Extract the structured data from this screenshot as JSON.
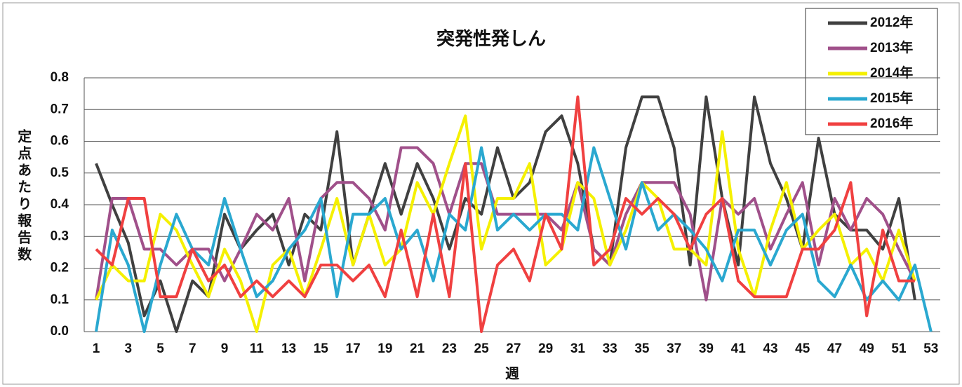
{
  "chart_data": {
    "type": "line",
    "title": "突発性発しん",
    "xlabel": "週",
    "ylabel": "定点あたり報告数",
    "categories": [
      1,
      null,
      3,
      null,
      5,
      null,
      7,
      null,
      9,
      null,
      11,
      null,
      13,
      null,
      15,
      null,
      17,
      null,
      19,
      null,
      21,
      null,
      23,
      null,
      25,
      null,
      27,
      null,
      29,
      null,
      31,
      null,
      33,
      null,
      35,
      null,
      37,
      null,
      39,
      null,
      41,
      null,
      43,
      null,
      45,
      null,
      47,
      null,
      49,
      null,
      51,
      null,
      53
    ],
    "ylim": [
      0,
      0.8
    ],
    "yticks": [
      {
        "value": 0,
        "label": "0.0"
      },
      0.1,
      0.2,
      0.3,
      0.4,
      0.5,
      0.6,
      0.7,
      0.8
    ],
    "grid": true,
    "legend": "top-right",
    "series": [
      {
        "name": "2012年",
        "color": "#404040",
        "values": [
          0.53,
          0.4,
          0.28,
          0.05,
          0.16,
          0,
          0.16,
          0.11,
          0.37,
          0.26,
          0.32,
          0.37,
          0.21,
          0.37,
          0.32,
          0.63,
          0.21,
          0.37,
          0.53,
          0.37,
          0.53,
          0.42,
          0.26,
          0.42,
          0.37,
          0.58,
          0.42,
          0.47,
          0.63,
          0.68,
          0.53,
          0.26,
          0.21,
          0.58,
          0.74,
          0.74,
          0.58,
          0.21,
          0.74,
          0.42,
          0.21,
          0.74,
          0.53,
          0.42,
          0.26,
          0.61,
          0.37,
          0.32,
          0.32,
          0.26,
          0.42,
          0.1,
          null
        ]
      },
      {
        "name": "2013年",
        "color": "#a0508a",
        "values": [
          0.1,
          0.42,
          0.42,
          0.26,
          0.26,
          0.21,
          0.26,
          0.26,
          0.16,
          0.26,
          0.37,
          0.32,
          0.42,
          0.16,
          0.42,
          0.47,
          0.47,
          0.42,
          0.32,
          0.58,
          0.58,
          0.53,
          0.37,
          0.53,
          0.53,
          0.37,
          0.37,
          0.37,
          0.37,
          0.32,
          0.47,
          0.26,
          0.21,
          0.37,
          0.47,
          0.47,
          0.47,
          0.37,
          0.1,
          0.42,
          0.37,
          0.42,
          0.26,
          0.37,
          0.47,
          0.21,
          0.42,
          0.32,
          0.42,
          0.37,
          0.26,
          0.16,
          null
        ]
      },
      {
        "name": "2014年",
        "color": "#f5f000",
        "values": [
          0.1,
          0.21,
          0.16,
          0.16,
          0.37,
          0.32,
          0.21,
          0.11,
          0.26,
          0.16,
          0,
          0.21,
          0.26,
          0.11,
          0.26,
          0.42,
          0.21,
          0.37,
          0.21,
          0.26,
          0.47,
          0.37,
          0.53,
          0.68,
          0.26,
          0.42,
          0.42,
          0.53,
          0.21,
          0.26,
          0.47,
          0.42,
          0.21,
          0.32,
          0.47,
          0.42,
          0.26,
          0.26,
          0.21,
          0.63,
          0.26,
          0.11,
          0.32,
          0.47,
          0.26,
          0.32,
          0.37,
          0.21,
          0.26,
          0.16,
          0.32,
          0.16,
          null
        ]
      },
      {
        "name": "2015年",
        "color": "#2aa8d0",
        "values": [
          0,
          0.32,
          0.21,
          0,
          0.21,
          0.37,
          0.26,
          0.21,
          0.42,
          0.26,
          0.11,
          0.16,
          0.26,
          0.32,
          0.42,
          0.11,
          0.37,
          0.37,
          0.42,
          0.26,
          0.32,
          0.16,
          0.37,
          0.32,
          0.58,
          0.32,
          0.37,
          0.32,
          0.37,
          0.37,
          0.32,
          0.58,
          0.42,
          0.26,
          0.47,
          0.32,
          0.37,
          0.32,
          0.26,
          0.16,
          0.32,
          0.32,
          0.21,
          0.32,
          0.37,
          0.16,
          0.11,
          0.21,
          0.1,
          0.16,
          0.1,
          0.21,
          0
        ]
      },
      {
        "name": "2016年",
        "color": "#f04040",
        "values": [
          0.26,
          0.21,
          0.42,
          0.42,
          0.11,
          0.11,
          0.26,
          0.16,
          0.21,
          0.11,
          0.16,
          0.11,
          0.16,
          0.11,
          0.21,
          0.21,
          0.16,
          0.21,
          0.11,
          0.32,
          0.11,
          0.37,
          0.11,
          0.53,
          0,
          0.21,
          0.26,
          0.16,
          0.37,
          0.26,
          0.74,
          0.21,
          0.26,
          0.42,
          0.37,
          0.42,
          0.37,
          0.26,
          0.37,
          0.42,
          0.16,
          0.11,
          0.11,
          0.11,
          0.26,
          0.26,
          0.32,
          0.47,
          0.05,
          0.32,
          0.16,
          0.16,
          null
        ]
      }
    ]
  }
}
